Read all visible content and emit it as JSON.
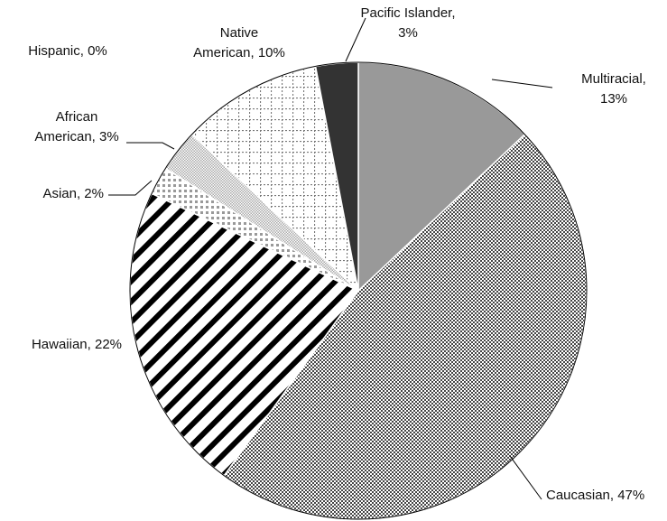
{
  "chart_data": {
    "type": "pie",
    "labels": [
      "Multiracial,\n13%",
      "Caucasian, 47%",
      "Hawaiian, 22%",
      "Asian, 2%",
      "African\nAmerican, 3%",
      "Hispanic, 0%",
      "Native\nAmerican, 10%",
      "Pacific Islander,\n3%"
    ],
    "values": [
      13,
      47,
      22,
      2,
      3,
      0,
      10,
      3
    ],
    "colors": [
      "#999999",
      "#444444",
      "#000000",
      "#999999",
      "#aaaaaa",
      "#ffffff",
      "#777777",
      "#333333"
    ]
  }
}
